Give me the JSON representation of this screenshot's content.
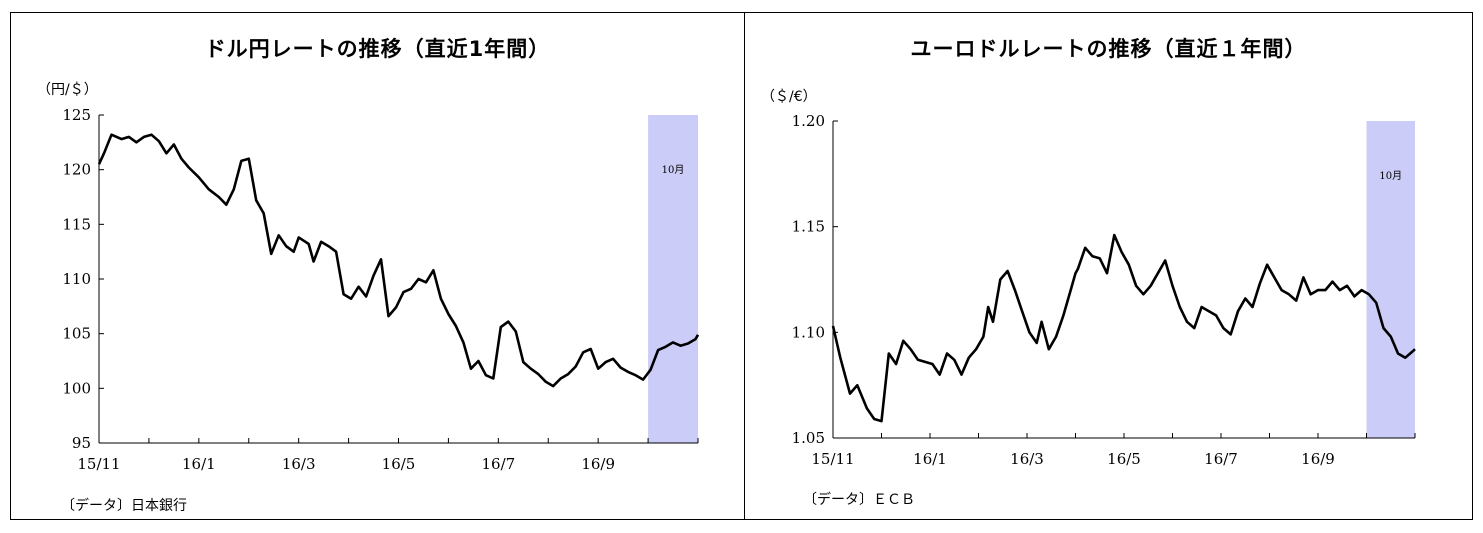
{
  "chart_data": [
    {
      "type": "line",
      "title": "ドル円レートの推移（直近1年間）",
      "ylabel": "（円/＄）",
      "xlabel": "",
      "ylim": [
        95,
        125
      ],
      "yticks": [
        "125",
        "120",
        "115",
        "110",
        "105",
        "100",
        "95"
      ],
      "xticks": [
        "15/11",
        "16/1",
        "16/3",
        "16/5",
        "16/7",
        "16/9"
      ],
      "xlim": [
        0,
        12
      ],
      "highlight": {
        "label": "10月",
        "start": 11,
        "end": 12,
        "color": "#ccccf8"
      },
      "source": "〔データ〕日本銀行",
      "series": [
        {
          "name": "ドル円",
          "x": [
            0,
            0.1,
            0.25,
            0.45,
            0.6,
            0.75,
            0.9,
            1.05,
            1.2,
            1.35,
            1.5,
            1.65,
            1.8,
            2.0,
            2.2,
            2.4,
            2.55,
            2.7,
            2.85,
            3.0,
            3.15,
            3.3,
            3.45,
            3.6,
            3.75,
            3.9,
            4.0,
            4.1,
            4.2,
            4.3,
            4.45,
            4.6,
            4.75,
            4.9,
            5.05,
            5.2,
            5.35,
            5.5,
            5.65,
            5.8,
            5.95,
            6.1,
            6.25,
            6.4,
            6.55,
            6.7,
            6.85,
            7.0,
            7.15,
            7.3,
            7.45,
            7.6,
            7.75,
            7.9,
            8.05,
            8.2,
            8.35,
            8.5,
            8.65,
            8.8,
            8.95,
            9.1,
            9.25,
            9.4,
            9.55,
            9.7,
            9.85,
            10.0,
            10.15,
            10.3,
            10.45,
            10.6,
            10.75,
            10.9,
            11.05,
            11.2,
            11.35,
            11.5,
            11.65,
            11.8,
            11.95,
            12.0
          ],
          "values": [
            120.5,
            121.5,
            123.2,
            122.8,
            123.0,
            122.5,
            123.0,
            123.2,
            122.6,
            121.5,
            122.3,
            121.0,
            120.2,
            119.3,
            118.2,
            117.5,
            116.8,
            118.2,
            120.8,
            121.0,
            117.2,
            116.0,
            112.3,
            114.0,
            113.0,
            112.5,
            113.8,
            113.5,
            113.2,
            111.6,
            113.4,
            113.0,
            112.5,
            108.6,
            108.2,
            109.3,
            108.4,
            110.3,
            111.8,
            106.6,
            107.4,
            108.8,
            109.1,
            110.0,
            109.7,
            110.8,
            108.2,
            106.8,
            105.7,
            104.2,
            101.8,
            102.5,
            101.2,
            100.9,
            105.6,
            106.1,
            105.2,
            102.4,
            101.8,
            101.3,
            100.6,
            100.2,
            100.9,
            101.3,
            102.0,
            103.3,
            103.6,
            101.8,
            102.4,
            102.7,
            101.9,
            101.5,
            101.2,
            100.8,
            101.7,
            103.5,
            103.8,
            104.2,
            103.9,
            104.1,
            104.5,
            104.9
          ]
        }
      ]
    },
    {
      "type": "line",
      "title": "ユーロドルレートの推移（直近１年間）",
      "ylabel": "（＄/€）",
      "xlabel": "",
      "ylim": [
        1.05,
        1.2
      ],
      "yticks": [
        "1.20",
        "1.15",
        "1.10",
        "1.05"
      ],
      "xticks": [
        "15/11",
        "16/1",
        "16/3",
        "16/5",
        "16/7",
        "16/9"
      ],
      "xlim": [
        0,
        12
      ],
      "highlight": {
        "label": "10月",
        "start": 11,
        "end": 12,
        "color": "#ccccf8"
      },
      "source": "〔データ〕ＥＣＢ",
      "series": [
        {
          "name": "ユーロドル",
          "x": [
            0,
            0.15,
            0.35,
            0.5,
            0.7,
            0.85,
            1.0,
            1.15,
            1.3,
            1.45,
            1.6,
            1.75,
            1.9,
            2.05,
            2.2,
            2.35,
            2.5,
            2.65,
            2.8,
            2.95,
            3.1,
            3.2,
            3.3,
            3.45,
            3.6,
            3.75,
            3.9,
            4.05,
            4.2,
            4.3,
            4.45,
            4.6,
            4.75,
            4.9,
            5.0,
            5.05,
            5.2,
            5.35,
            5.5,
            5.65,
            5.8,
            5.95,
            6.1,
            6.25,
            6.4,
            6.55,
            6.7,
            6.85,
            7.0,
            7.15,
            7.3,
            7.45,
            7.6,
            7.75,
            7.9,
            8.05,
            8.2,
            8.35,
            8.5,
            8.65,
            8.8,
            8.95,
            9.1,
            9.25,
            9.4,
            9.55,
            9.7,
            9.85,
            10.0,
            10.15,
            10.3,
            10.45,
            10.6,
            10.75,
            10.9,
            11.05,
            11.2,
            11.35,
            11.5,
            11.65,
            11.8,
            11.95,
            12.0
          ],
          "values": [
            1.103,
            1.088,
            1.071,
            1.075,
            1.064,
            1.059,
            1.058,
            1.09,
            1.085,
            1.096,
            1.092,
            1.087,
            1.086,
            1.085,
            1.08,
            1.09,
            1.087,
            1.08,
            1.088,
            1.092,
            1.098,
            1.112,
            1.105,
            1.125,
            1.129,
            1.12,
            1.11,
            1.1,
            1.095,
            1.105,
            1.092,
            1.098,
            1.108,
            1.12,
            1.128,
            1.13,
            1.14,
            1.136,
            1.135,
            1.128,
            1.146,
            1.138,
            1.132,
            1.122,
            1.118,
            1.122,
            1.128,
            1.134,
            1.122,
            1.112,
            1.105,
            1.102,
            1.112,
            1.11,
            1.108,
            1.102,
            1.099,
            1.11,
            1.116,
            1.112,
            1.123,
            1.132,
            1.126,
            1.12,
            1.118,
            1.115,
            1.126,
            1.118,
            1.12,
            1.12,
            1.124,
            1.12,
            1.122,
            1.117,
            1.12,
            1.118,
            1.114,
            1.102,
            1.098,
            1.09,
            1.088,
            1.091,
            1.092
          ]
        }
      ]
    }
  ]
}
